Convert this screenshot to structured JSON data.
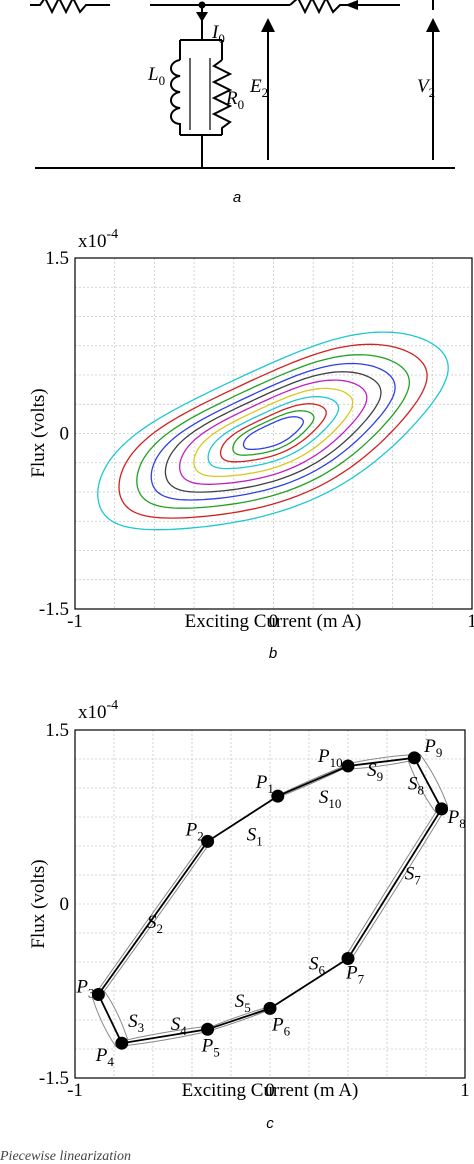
{
  "panel_a": {
    "caption": "a",
    "labels": {
      "I0": {
        "main": "I",
        "sub": "0"
      },
      "L0": {
        "main": "L",
        "sub": "0"
      },
      "R0": {
        "main": "R",
        "sub": "0"
      },
      "E2": {
        "main": "E",
        "sub": "2"
      },
      "V2": {
        "main": "V",
        "sub": "2"
      }
    }
  },
  "panel_b": {
    "caption": "b"
  },
  "panel_c": {
    "caption": "c"
  },
  "footer_text": "Piecewise linearization",
  "chart_data": [
    {
      "type": "line",
      "title": "",
      "xlabel": "Exciting Current (m A)",
      "ylabel": "Flux (volts)",
      "y_multiplier_text": {
        "base": "x10",
        "exp": "-4"
      },
      "xlim": [
        -1,
        1
      ],
      "ylim": [
        -1.5,
        1.5
      ],
      "x_ticks": [
        "-1",
        "0",
        "1"
      ],
      "y_ticks": [
        "1.5",
        "0",
        "-1.5"
      ],
      "grid": true,
      "tilt_deg": 30,
      "series": [
        {
          "color": "#1ec8d2",
          "half_width": 0.99,
          "half_height": 0.42
        },
        {
          "color": "#d22020",
          "half_width": 0.87,
          "half_height": 0.37
        },
        {
          "color": "#20a020",
          "half_width": 0.77,
          "half_height": 0.325
        },
        {
          "color": "#3040e0",
          "half_width": 0.69,
          "half_height": 0.285
        },
        {
          "color": "#404040",
          "half_width": 0.61,
          "half_height": 0.25
        },
        {
          "color": "#c020c0",
          "half_width": 0.53,
          "half_height": 0.215
        },
        {
          "color": "#d8c820",
          "half_width": 0.45,
          "half_height": 0.18
        },
        {
          "color": "#1ec8d2",
          "half_width": 0.37,
          "half_height": 0.145
        },
        {
          "color": "#d22020",
          "half_width": 0.3,
          "half_height": 0.115
        },
        {
          "color": "#20a020",
          "half_width": 0.23,
          "half_height": 0.088
        },
        {
          "color": "#3040e0",
          "half_width": 0.17,
          "half_height": 0.064
        }
      ]
    },
    {
      "type": "line",
      "title": "",
      "xlabel": "Exciting Current (m A)",
      "ylabel": "Flux (volts)",
      "y_multiplier_text": {
        "base": "x10",
        "exp": "-4"
      },
      "xlim": [
        -1,
        1
      ],
      "ylim": [
        -1.5,
        1.5
      ],
      "x_ticks": [
        "-1",
        "0",
        "1"
      ],
      "y_ticks": [
        "1.5",
        "0",
        "-1.5"
      ],
      "grid": true,
      "points": [
        {
          "main": "P",
          "sub": "1",
          "x": 0.04,
          "y": 0.93
        },
        {
          "main": "P",
          "sub": "2",
          "x": -0.32,
          "y": 0.54
        },
        {
          "main": "P",
          "sub": "3",
          "x": -0.88,
          "y": -0.78
        },
        {
          "main": "P",
          "sub": "4",
          "x": -0.76,
          "y": -1.2
        },
        {
          "main": "P",
          "sub": "5",
          "x": -0.32,
          "y": -1.08
        },
        {
          "main": "P",
          "sub": "6",
          "x": 0.0,
          "y": -0.9
        },
        {
          "main": "P",
          "sub": "7",
          "x": 0.4,
          "y": -0.47
        },
        {
          "main": "P",
          "sub": "8",
          "x": 0.88,
          "y": 0.82
        },
        {
          "main": "P",
          "sub": "9",
          "x": 0.74,
          "y": 1.26
        },
        {
          "main": "P",
          "sub": "10",
          "x": 0.4,
          "y": 1.19
        }
      ],
      "segments": [
        {
          "main": "S",
          "sub": "1"
        },
        {
          "main": "S",
          "sub": "2"
        },
        {
          "main": "S",
          "sub": "3"
        },
        {
          "main": "S",
          "sub": "4"
        },
        {
          "main": "S",
          "sub": "5"
        },
        {
          "main": "S",
          "sub": "6"
        },
        {
          "main": "S",
          "sub": "7"
        },
        {
          "main": "S",
          "sub": "8"
        },
        {
          "main": "S",
          "sub": "9"
        },
        {
          "main": "S",
          "sub": "10"
        }
      ]
    }
  ]
}
